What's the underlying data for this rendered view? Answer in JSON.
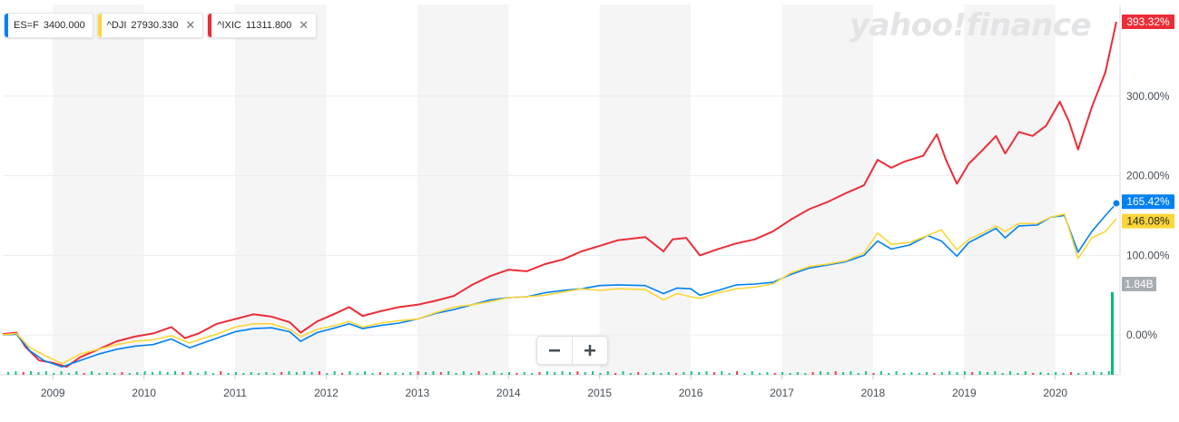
{
  "brand_text": "yahoo!finance",
  "legend": [
    {
      "symbol": "ES=F",
      "price": "3400.000",
      "color": "#0081f2",
      "closable": false
    },
    {
      "symbol": "^DJI",
      "price": "27930.330",
      "color": "#fcd638",
      "closable": true
    },
    {
      "symbol": "^IXIC",
      "price": "11311.800",
      "color": "#ec2d38",
      "closable": true
    }
  ],
  "zoom": {
    "out_icon": "minus-icon",
    "in_icon": "plus-icon"
  },
  "chart_data": {
    "type": "line",
    "title": "",
    "xlabel": "",
    "ylabel": "",
    "x_ticks": [
      "2009",
      "2010",
      "2011",
      "2012",
      "2013",
      "2014",
      "2015",
      "2016",
      "2017",
      "2018",
      "2019",
      "2020"
    ],
    "y_ticks": [
      "0.00%",
      "100.00%",
      "200.00%",
      "300.00%"
    ],
    "y_tick_values": [
      0,
      100,
      200,
      300
    ],
    "ylim": [
      -50,
      415
    ],
    "xlim": [
      2008.45,
      2020.7
    ],
    "grid": true,
    "alternating_year_shading": true,
    "series": [
      {
        "name": "^IXIC",
        "color": "#ec2d38",
        "last_label": "393.32%",
        "points": [
          [
            2008.45,
            1
          ],
          [
            2008.6,
            3
          ],
          [
            2008.7,
            -15
          ],
          [
            2008.85,
            -32
          ],
          [
            2009.0,
            -35
          ],
          [
            2009.15,
            -40
          ],
          [
            2009.3,
            -28
          ],
          [
            2009.5,
            -18
          ],
          [
            2009.7,
            -8
          ],
          [
            2009.9,
            -2
          ],
          [
            2010.1,
            2
          ],
          [
            2010.3,
            10
          ],
          [
            2010.45,
            -4
          ],
          [
            2010.6,
            2
          ],
          [
            2010.8,
            14
          ],
          [
            2011.0,
            20
          ],
          [
            2011.2,
            26
          ],
          [
            2011.4,
            23
          ],
          [
            2011.6,
            16
          ],
          [
            2011.72,
            3
          ],
          [
            2011.9,
            17
          ],
          [
            2012.1,
            27
          ],
          [
            2012.25,
            35
          ],
          [
            2012.4,
            24
          ],
          [
            2012.6,
            30
          ],
          [
            2012.8,
            35
          ],
          [
            2013.0,
            38
          ],
          [
            2013.2,
            43
          ],
          [
            2013.4,
            49
          ],
          [
            2013.6,
            63
          ],
          [
            2013.8,
            74
          ],
          [
            2014.0,
            82
          ],
          [
            2014.2,
            80
          ],
          [
            2014.4,
            89
          ],
          [
            2014.6,
            95
          ],
          [
            2014.8,
            105
          ],
          [
            2015.0,
            112
          ],
          [
            2015.2,
            119
          ],
          [
            2015.5,
            123
          ],
          [
            2015.7,
            105
          ],
          [
            2015.8,
            120
          ],
          [
            2015.95,
            122
          ],
          [
            2016.1,
            100
          ],
          [
            2016.3,
            108
          ],
          [
            2016.5,
            115
          ],
          [
            2016.7,
            120
          ],
          [
            2016.9,
            130
          ],
          [
            2017.1,
            145
          ],
          [
            2017.3,
            158
          ],
          [
            2017.5,
            167
          ],
          [
            2017.7,
            178
          ],
          [
            2017.9,
            188
          ],
          [
            2018.05,
            220
          ],
          [
            2018.2,
            210
          ],
          [
            2018.35,
            218
          ],
          [
            2018.55,
            225
          ],
          [
            2018.7,
            252
          ],
          [
            2018.8,
            220
          ],
          [
            2018.92,
            190
          ],
          [
            2019.05,
            215
          ],
          [
            2019.2,
            232
          ],
          [
            2019.35,
            250
          ],
          [
            2019.45,
            228
          ],
          [
            2019.6,
            255
          ],
          [
            2019.75,
            250
          ],
          [
            2019.9,
            263
          ],
          [
            2020.05,
            293
          ],
          [
            2020.15,
            268
          ],
          [
            2020.25,
            233
          ],
          [
            2020.4,
            286
          ],
          [
            2020.55,
            330
          ],
          [
            2020.67,
            393.32
          ]
        ]
      },
      {
        "name": "ES=F",
        "color": "#0081f2",
        "last_label": "165.42%",
        "points": [
          [
            2008.45,
            0
          ],
          [
            2008.6,
            1
          ],
          [
            2008.75,
            -20
          ],
          [
            2008.9,
            -32
          ],
          [
            2009.1,
            -40
          ],
          [
            2009.3,
            -32
          ],
          [
            2009.5,
            -24
          ],
          [
            2009.7,
            -18
          ],
          [
            2009.9,
            -14
          ],
          [
            2010.1,
            -12
          ],
          [
            2010.3,
            -5
          ],
          [
            2010.5,
            -16
          ],
          [
            2010.65,
            -10
          ],
          [
            2010.8,
            -4
          ],
          [
            2011.0,
            4
          ],
          [
            2011.2,
            8
          ],
          [
            2011.4,
            9
          ],
          [
            2011.6,
            4
          ],
          [
            2011.72,
            -8
          ],
          [
            2011.9,
            3
          ],
          [
            2012.1,
            9
          ],
          [
            2012.25,
            14
          ],
          [
            2012.4,
            8
          ],
          [
            2012.6,
            12
          ],
          [
            2012.8,
            15
          ],
          [
            2013.0,
            20
          ],
          [
            2013.2,
            27
          ],
          [
            2013.4,
            32
          ],
          [
            2013.6,
            38
          ],
          [
            2013.8,
            44
          ],
          [
            2014.0,
            47
          ],
          [
            2014.2,
            48
          ],
          [
            2014.4,
            53
          ],
          [
            2014.6,
            56
          ],
          [
            2014.8,
            58
          ],
          [
            2015.0,
            62
          ],
          [
            2015.2,
            63
          ],
          [
            2015.5,
            62
          ],
          [
            2015.7,
            52
          ],
          [
            2015.85,
            59
          ],
          [
            2016.0,
            58
          ],
          [
            2016.1,
            50
          ],
          [
            2016.3,
            56
          ],
          [
            2016.5,
            63
          ],
          [
            2016.7,
            64
          ],
          [
            2016.9,
            66
          ],
          [
            2017.1,
            76
          ],
          [
            2017.3,
            84
          ],
          [
            2017.5,
            88
          ],
          [
            2017.7,
            92
          ],
          [
            2017.9,
            100
          ],
          [
            2018.05,
            118
          ],
          [
            2018.2,
            108
          ],
          [
            2018.4,
            113
          ],
          [
            2018.6,
            125
          ],
          [
            2018.75,
            118
          ],
          [
            2018.92,
            99
          ],
          [
            2019.05,
            116
          ],
          [
            2019.2,
            125
          ],
          [
            2019.35,
            134
          ],
          [
            2019.45,
            122
          ],
          [
            2019.6,
            137
          ],
          [
            2019.8,
            138
          ],
          [
            2019.95,
            148
          ],
          [
            2020.1,
            150
          ],
          [
            2020.25,
            104
          ],
          [
            2020.4,
            130
          ],
          [
            2020.55,
            150
          ],
          [
            2020.67,
            165.42
          ]
        ]
      },
      {
        "name": "^DJI",
        "color": "#fcd638",
        "last_label": "146.08%",
        "points": [
          [
            2008.45,
            0
          ],
          [
            2008.6,
            2
          ],
          [
            2008.75,
            -16
          ],
          [
            2008.9,
            -25
          ],
          [
            2009.1,
            -36
          ],
          [
            2009.3,
            -24
          ],
          [
            2009.5,
            -18
          ],
          [
            2009.7,
            -12
          ],
          [
            2009.9,
            -8
          ],
          [
            2010.1,
            -6
          ],
          [
            2010.3,
            -1
          ],
          [
            2010.5,
            -10
          ],
          [
            2010.65,
            -4
          ],
          [
            2010.8,
            1
          ],
          [
            2011.0,
            10
          ],
          [
            2011.2,
            14
          ],
          [
            2011.4,
            14
          ],
          [
            2011.6,
            7
          ],
          [
            2011.72,
            -2
          ],
          [
            2011.9,
            7
          ],
          [
            2012.1,
            12
          ],
          [
            2012.25,
            17
          ],
          [
            2012.4,
            10
          ],
          [
            2012.6,
            15
          ],
          [
            2012.8,
            18
          ],
          [
            2013.0,
            20
          ],
          [
            2013.2,
            28
          ],
          [
            2013.4,
            35
          ],
          [
            2013.6,
            38
          ],
          [
            2013.8,
            42
          ],
          [
            2014.0,
            47
          ],
          [
            2014.2,
            48
          ],
          [
            2014.4,
            50
          ],
          [
            2014.6,
            54
          ],
          [
            2014.8,
            58
          ],
          [
            2015.0,
            56
          ],
          [
            2015.2,
            58
          ],
          [
            2015.5,
            57
          ],
          [
            2015.7,
            44
          ],
          [
            2015.85,
            52
          ],
          [
            2016.0,
            48
          ],
          [
            2016.1,
            46
          ],
          [
            2016.3,
            53
          ],
          [
            2016.5,
            58
          ],
          [
            2016.7,
            60
          ],
          [
            2016.9,
            64
          ],
          [
            2017.1,
            78
          ],
          [
            2017.3,
            86
          ],
          [
            2017.5,
            89
          ],
          [
            2017.7,
            93
          ],
          [
            2017.9,
            103
          ],
          [
            2018.05,
            128
          ],
          [
            2018.2,
            114
          ],
          [
            2018.4,
            116
          ],
          [
            2018.6,
            125
          ],
          [
            2018.75,
            132
          ],
          [
            2018.92,
            107
          ],
          [
            2019.05,
            120
          ],
          [
            2019.2,
            128
          ],
          [
            2019.35,
            137
          ],
          [
            2019.45,
            130
          ],
          [
            2019.6,
            140
          ],
          [
            2019.8,
            140
          ],
          [
            2019.95,
            148
          ],
          [
            2020.1,
            152
          ],
          [
            2020.25,
            96
          ],
          [
            2020.4,
            122
          ],
          [
            2020.55,
            130
          ],
          [
            2020.67,
            146.08
          ]
        ]
      }
    ],
    "volume": {
      "last_label": "1.84B",
      "last_bar_color": "#00c073",
      "note_colors": [
        "#ec2d38",
        "#00c073"
      ]
    }
  }
}
